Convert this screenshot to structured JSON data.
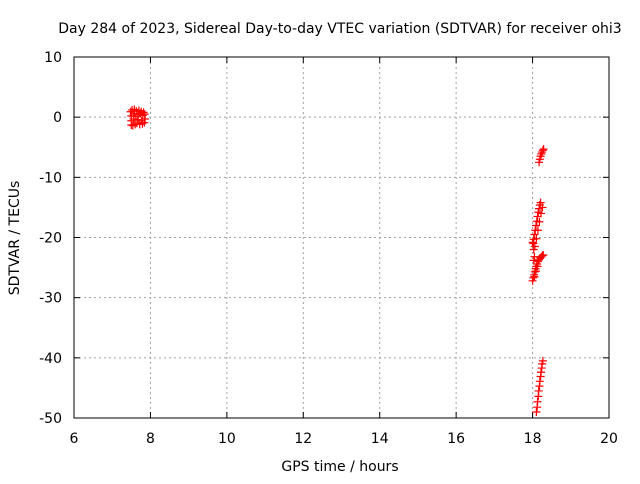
{
  "chart_data": {
    "type": "scatter",
    "title": "Day 284 of 2023, Sidereal Day-to-day VTEC variation (SDTVAR) for receiver ohi3",
    "xlabel": "GPS time / hours",
    "ylabel": "SDTVAR / TECUs",
    "xlim": [
      6,
      20
    ],
    "ylim": [
      -50,
      10
    ],
    "xticks": [
      6,
      8,
      10,
      12,
      14,
      16,
      18,
      20
    ],
    "yticks": [
      -50,
      -40,
      -30,
      -20,
      -10,
      0,
      10
    ],
    "xtick_labels": [
      "6",
      "8",
      "10",
      "12",
      "14",
      "16",
      "18",
      "20"
    ],
    "ytick_labels": [
      "-50",
      "-40",
      "-30",
      "-20",
      "-10",
      "0",
      "10"
    ],
    "grid": true,
    "marker": "+",
    "marker_color": "#ff0000",
    "series": [
      {
        "points": [
          [
            7.48,
            0.9
          ],
          [
            7.5,
            0.2
          ],
          [
            7.5,
            -0.6
          ],
          [
            7.5,
            -1.3
          ],
          [
            7.52,
            1.2
          ],
          [
            7.54,
            -1.4
          ],
          [
            7.56,
            0.5
          ],
          [
            7.56,
            -0.3
          ],
          [
            7.58,
            1.3
          ],
          [
            7.6,
            -1.2
          ],
          [
            7.62,
            0.1
          ],
          [
            7.63,
            1.0
          ],
          [
            7.65,
            -1.0
          ],
          [
            7.67,
            0.4
          ],
          [
            7.68,
            -0.4
          ],
          [
            7.7,
            1.1
          ],
          [
            7.72,
            -1.2
          ],
          [
            7.74,
            0.6
          ],
          [
            7.76,
            0.9
          ],
          [
            7.77,
            -0.6
          ],
          [
            7.79,
            -1.1
          ],
          [
            7.8,
            0.3
          ],
          [
            7.82,
            0.8
          ],
          [
            7.84,
            -0.9
          ],
          [
            7.85,
            0.5
          ],
          [
            7.86,
            -0.3
          ],
          [
            18.17,
            -7.5
          ],
          [
            18.19,
            -7.0
          ],
          [
            18.21,
            -6.5
          ],
          [
            18.23,
            -6.1
          ],
          [
            18.25,
            -5.8
          ],
          [
            18.27,
            -5.5
          ],
          [
            18.29,
            -5.3
          ],
          [
            18.02,
            -21.0
          ],
          [
            18.03,
            -20.3
          ],
          [
            18.05,
            -19.5
          ],
          [
            18.07,
            -18.8
          ],
          [
            18.09,
            -18.0
          ],
          [
            18.11,
            -17.3
          ],
          [
            18.13,
            -16.5
          ],
          [
            18.15,
            -15.8
          ],
          [
            18.17,
            -15.2
          ],
          [
            18.19,
            -14.6
          ],
          [
            18.21,
            -14.2
          ],
          [
            18.06,
            -21.5
          ],
          [
            18.1,
            -20.2
          ],
          [
            18.14,
            -18.8
          ],
          [
            18.18,
            -17.4
          ],
          [
            18.22,
            -16.0
          ],
          [
            18.26,
            -15.0
          ],
          [
            18.03,
            -22.0
          ],
          [
            18.0,
            -27.2
          ],
          [
            18.02,
            -26.7
          ],
          [
            18.04,
            -26.2
          ],
          [
            18.06,
            -25.7
          ],
          [
            18.08,
            -25.2
          ],
          [
            18.1,
            -24.8
          ],
          [
            18.12,
            -24.4
          ],
          [
            18.14,
            -24.0
          ],
          [
            18.17,
            -23.7
          ],
          [
            18.2,
            -23.4
          ],
          [
            18.23,
            -23.2
          ],
          [
            18.26,
            -23.0
          ],
          [
            18.28,
            -22.9
          ],
          [
            18.05,
            -26.5
          ],
          [
            18.09,
            -25.6
          ],
          [
            18.13,
            -24.8
          ],
          [
            18.0,
            -20.8
          ],
          [
            18.03,
            -23.8
          ],
          [
            18.05,
            -23.2
          ],
          [
            18.1,
            -49.0
          ],
          [
            18.12,
            -48.2
          ],
          [
            18.13,
            -47.3
          ],
          [
            18.15,
            -46.4
          ],
          [
            18.16,
            -45.5
          ],
          [
            18.18,
            -44.7
          ],
          [
            18.19,
            -43.9
          ],
          [
            18.21,
            -43.1
          ],
          [
            18.22,
            -42.4
          ],
          [
            18.24,
            -41.7
          ],
          [
            18.25,
            -41.0
          ],
          [
            18.27,
            -40.5
          ]
        ]
      }
    ]
  }
}
